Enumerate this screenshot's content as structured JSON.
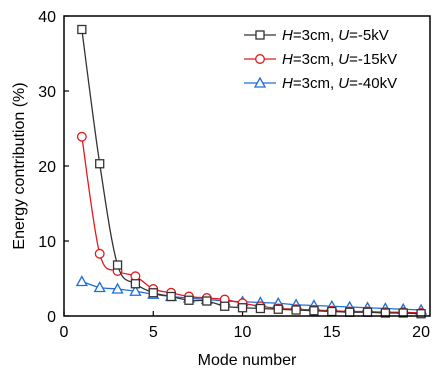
{
  "chart_data": {
    "type": "line",
    "xlabel": "Mode number",
    "ylabel": "Energy contribution (%)",
    "xlim": [
      0,
      20.5
    ],
    "ylim": [
      0,
      40
    ],
    "xticks": [
      0,
      5,
      10,
      15,
      20
    ],
    "yticks": [
      0,
      10,
      20,
      30,
      40
    ],
    "legend_position": "top-right",
    "grid": false,
    "x": [
      1,
      2,
      3,
      4,
      5,
      6,
      7,
      8,
      9,
      10,
      11,
      12,
      13,
      14,
      15,
      16,
      17,
      18,
      19,
      20
    ],
    "series": [
      {
        "legend": {
          "italic_h": "H",
          "part_h": "=3cm, ",
          "italic_u": "U",
          "part_u": "=-5kV"
        },
        "color": "#333333",
        "marker": "square",
        "values": [
          38.2,
          20.3,
          6.8,
          4.3,
          3.1,
          2.6,
          2.1,
          2.0,
          1.3,
          1.1,
          1.0,
          0.9,
          0.8,
          0.7,
          0.6,
          0.5,
          0.5,
          0.4,
          0.4,
          0.3
        ]
      },
      {
        "legend": {
          "italic_h": "H",
          "part_h": "=3cm, ",
          "italic_u": "U",
          "part_u": "=-15kV"
        },
        "color": "#e31a1c",
        "marker": "circle",
        "values": [
          23.9,
          8.3,
          6.0,
          5.3,
          3.6,
          3.1,
          2.6,
          2.4,
          2.2,
          1.7,
          1.3,
          1.0,
          0.9,
          0.8,
          0.7,
          0.6,
          0.6,
          0.5,
          0.5,
          0.4
        ]
      },
      {
        "legend": {
          "italic_h": "H",
          "part_h": "=3cm, ",
          "italic_u": "U",
          "part_u": "=-40kV"
        },
        "color": "#1f6fd6",
        "marker": "triangle",
        "values": [
          4.6,
          3.8,
          3.6,
          3.3,
          2.9,
          2.6,
          2.4,
          2.2,
          2.0,
          1.9,
          1.8,
          1.7,
          1.5,
          1.4,
          1.3,
          1.2,
          1.1,
          1.0,
          0.9,
          0.8
        ]
      }
    ]
  }
}
